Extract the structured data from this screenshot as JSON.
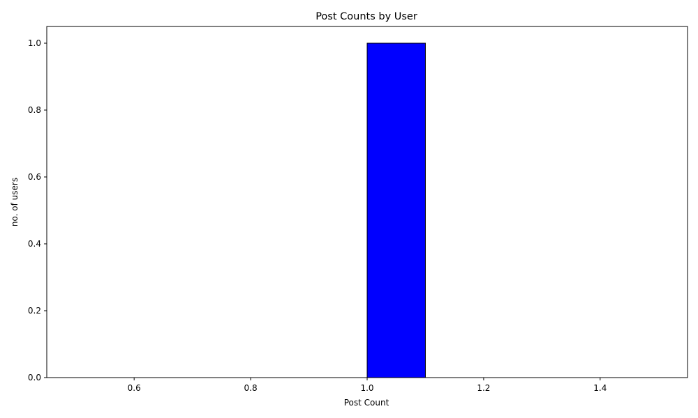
{
  "chart_data": {
    "type": "bar",
    "title": "Post Counts by User",
    "xlabel": "Post Count",
    "ylabel": "no. of users",
    "xlim": [
      0.45,
      1.55
    ],
    "ylim": [
      0,
      1.05
    ],
    "xticks": [
      0.6,
      0.8,
      1.0,
      1.2,
      1.4
    ],
    "xtick_labels": [
      "0.6",
      "0.8",
      "1.0",
      "1.2",
      "1.4"
    ],
    "yticks": [
      0,
      0.2,
      0.4,
      0.6,
      0.8,
      1.0
    ],
    "ytick_labels": [
      "0.0",
      "0.2",
      "0.4",
      "0.6",
      "0.8",
      "1.0"
    ],
    "bins": [
      {
        "x0": 0.5,
        "x1": 0.6,
        "value": 0
      },
      {
        "x0": 0.6,
        "x1": 0.7,
        "value": 0
      },
      {
        "x0": 0.7,
        "x1": 0.8,
        "value": 0
      },
      {
        "x0": 0.8,
        "x1": 0.9,
        "value": 0
      },
      {
        "x0": 0.9,
        "x1": 1.0,
        "value": 0
      },
      {
        "x0": 1.0,
        "x1": 1.1,
        "value": 1
      },
      {
        "x0": 1.1,
        "x1": 1.2,
        "value": 0
      },
      {
        "x0": 1.2,
        "x1": 1.3,
        "value": 0
      },
      {
        "x0": 1.3,
        "x1": 1.4,
        "value": 0
      },
      {
        "x0": 1.4,
        "x1": 1.5,
        "value": 0
      }
    ],
    "bar_color": "#0000ff",
    "edge_color": "#000000",
    "grid": false,
    "legend": "none"
  }
}
